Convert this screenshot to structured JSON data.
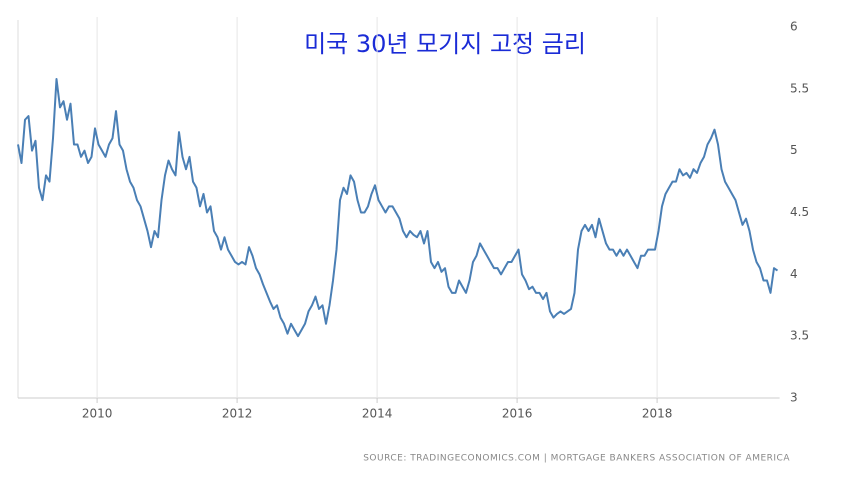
{
  "chart_data": {
    "type": "line",
    "title": "미국 30년 모기지 고정 금리",
    "source": "SOURCE: TRADINGECONOMICS.COM | MORTGAGE BANKERS ASSOCIATION OF AMERICA",
    "x": [
      2008.87,
      2008.92,
      2008.97,
      2009.02,
      2009.07,
      2009.12,
      2009.17,
      2009.22,
      2009.27,
      2009.32,
      2009.37,
      2009.42,
      2009.47,
      2009.52,
      2009.57,
      2009.62,
      2009.67,
      2009.72,
      2009.77,
      2009.82,
      2009.87,
      2009.92,
      2009.97,
      2010.02,
      2010.07,
      2010.12,
      2010.17,
      2010.22,
      2010.27,
      2010.32,
      2010.37,
      2010.42,
      2010.47,
      2010.52,
      2010.57,
      2010.62,
      2010.67,
      2010.72,
      2010.77,
      2010.82,
      2010.87,
      2010.92,
      2010.97,
      2011.02,
      2011.07,
      2011.12,
      2011.17,
      2011.22,
      2011.27,
      2011.32,
      2011.37,
      2011.42,
      2011.47,
      2011.52,
      2011.57,
      2011.62,
      2011.67,
      2011.72,
      2011.77,
      2011.82,
      2011.87,
      2011.92,
      2011.97,
      2012.02,
      2012.07,
      2012.12,
      2012.17,
      2012.22,
      2012.27,
      2012.32,
      2012.37,
      2012.42,
      2012.47,
      2012.52,
      2012.57,
      2012.62,
      2012.67,
      2012.72,
      2012.77,
      2012.82,
      2012.87,
      2012.92,
      2012.97,
      2013.02,
      2013.07,
      2013.12,
      2013.17,
      2013.22,
      2013.27,
      2013.32,
      2013.37,
      2013.42,
      2013.47,
      2013.52,
      2013.57,
      2013.62,
      2013.67,
      2013.72,
      2013.77,
      2013.82,
      2013.87,
      2013.92,
      2013.97,
      2014.02,
      2014.07,
      2014.12,
      2014.17,
      2014.22,
      2014.27,
      2014.32,
      2014.37,
      2014.42,
      2014.47,
      2014.52,
      2014.57,
      2014.62,
      2014.67,
      2014.72,
      2014.77,
      2014.82,
      2014.87,
      2014.92,
      2014.97,
      2015.02,
      2015.07,
      2015.12,
      2015.17,
      2015.22,
      2015.27,
      2015.32,
      2015.37,
      2015.42,
      2015.47,
      2015.52,
      2015.57,
      2015.62,
      2015.67,
      2015.72,
      2015.77,
      2015.82,
      2015.87,
      2015.92,
      2015.97,
      2016.02,
      2016.07,
      2016.12,
      2016.17,
      2016.22,
      2016.27,
      2016.32,
      2016.37,
      2016.42,
      2016.47,
      2016.52,
      2016.57,
      2016.62,
      2016.67,
      2016.72,
      2016.77,
      2016.82,
      2016.87,
      2016.92,
      2016.97,
      2017.02,
      2017.07,
      2017.12,
      2017.17,
      2017.22,
      2017.27,
      2017.32,
      2017.37,
      2017.42,
      2017.47,
      2017.52,
      2017.57,
      2017.62,
      2017.67,
      2017.72,
      2017.77,
      2017.82,
      2017.87,
      2017.92,
      2017.97,
      2018.02,
      2018.07,
      2018.12,
      2018.17,
      2018.22,
      2018.27,
      2018.32,
      2018.37,
      2018.42,
      2018.47,
      2018.52,
      2018.57,
      2018.62,
      2018.67,
      2018.72,
      2018.77,
      2018.82,
      2018.87,
      2018.92,
      2018.97,
      2019.02,
      2019.07,
      2019.12,
      2019.17,
      2019.22,
      2019.27,
      2019.32,
      2019.37,
      2019.42,
      2019.47,
      2019.52,
      2019.57,
      2019.62,
      2019.67,
      2019.72
    ],
    "values": [
      5.05,
      4.9,
      5.25,
      5.28,
      5.0,
      5.08,
      4.7,
      4.6,
      4.8,
      4.75,
      5.1,
      5.58,
      5.35,
      5.4,
      5.25,
      5.38,
      5.05,
      5.05,
      4.95,
      5.0,
      4.9,
      4.95,
      5.18,
      5.05,
      5.0,
      4.95,
      5.05,
      5.1,
      5.32,
      5.05,
      5.0,
      4.85,
      4.75,
      4.7,
      4.6,
      4.55,
      4.45,
      4.35,
      4.22,
      4.35,
      4.3,
      4.6,
      4.8,
      4.92,
      4.85,
      4.8,
      5.15,
      4.95,
      4.85,
      4.95,
      4.75,
      4.7,
      4.55,
      4.65,
      4.5,
      4.55,
      4.35,
      4.3,
      4.2,
      4.3,
      4.2,
      4.15,
      4.1,
      4.08,
      4.1,
      4.08,
      4.22,
      4.15,
      4.05,
      4.0,
      3.92,
      3.85,
      3.78,
      3.72,
      3.75,
      3.65,
      3.6,
      3.52,
      3.6,
      3.55,
      3.5,
      3.55,
      3.6,
      3.7,
      3.75,
      3.82,
      3.72,
      3.75,
      3.6,
      3.75,
      3.95,
      4.2,
      4.6,
      4.7,
      4.65,
      4.8,
      4.75,
      4.6,
      4.5,
      4.5,
      4.55,
      4.65,
      4.72,
      4.6,
      4.55,
      4.5,
      4.55,
      4.55,
      4.5,
      4.45,
      4.35,
      4.3,
      4.35,
      4.32,
      4.3,
      4.35,
      4.25,
      4.35,
      4.1,
      4.05,
      4.1,
      4.02,
      4.05,
      3.9,
      3.85,
      3.85,
      3.95,
      3.9,
      3.85,
      3.95,
      4.1,
      4.15,
      4.25,
      4.2,
      4.15,
      4.1,
      4.05,
      4.05,
      4.0,
      4.05,
      4.1,
      4.1,
      4.15,
      4.2,
      4.0,
      3.95,
      3.88,
      3.9,
      3.85,
      3.85,
      3.8,
      3.85,
      3.7,
      3.65,
      3.68,
      3.7,
      3.68,
      3.7,
      3.72,
      3.85,
      4.2,
      4.35,
      4.4,
      4.35,
      4.4,
      4.3,
      4.45,
      4.35,
      4.25,
      4.2,
      4.2,
      4.15,
      4.2,
      4.15,
      4.2,
      4.15,
      4.1,
      4.05,
      4.15,
      4.15,
      4.2,
      4.2,
      4.2,
      4.35,
      4.55,
      4.65,
      4.7,
      4.75,
      4.75,
      4.85,
      4.8,
      4.82,
      4.78,
      4.85,
      4.82,
      4.9,
      4.95,
      5.05,
      5.1,
      5.17,
      5.05,
      4.85,
      4.75,
      4.7,
      4.65,
      4.6,
      4.5,
      4.4,
      4.45,
      4.35,
      4.2,
      4.1,
      4.05,
      3.95,
      3.95,
      3.85,
      4.05,
      4.03
    ],
    "color": "#4a7fb5",
    "xlim": [
      2008.87,
      2019.75
    ],
    "xticks": [
      2010,
      2012,
      2014,
      2016,
      2018
    ],
    "ylim": [
      3,
      6
    ],
    "yticks": [
      3,
      3.5,
      4,
      4.5,
      5,
      5.5,
      6
    ],
    "grid": "x"
  }
}
